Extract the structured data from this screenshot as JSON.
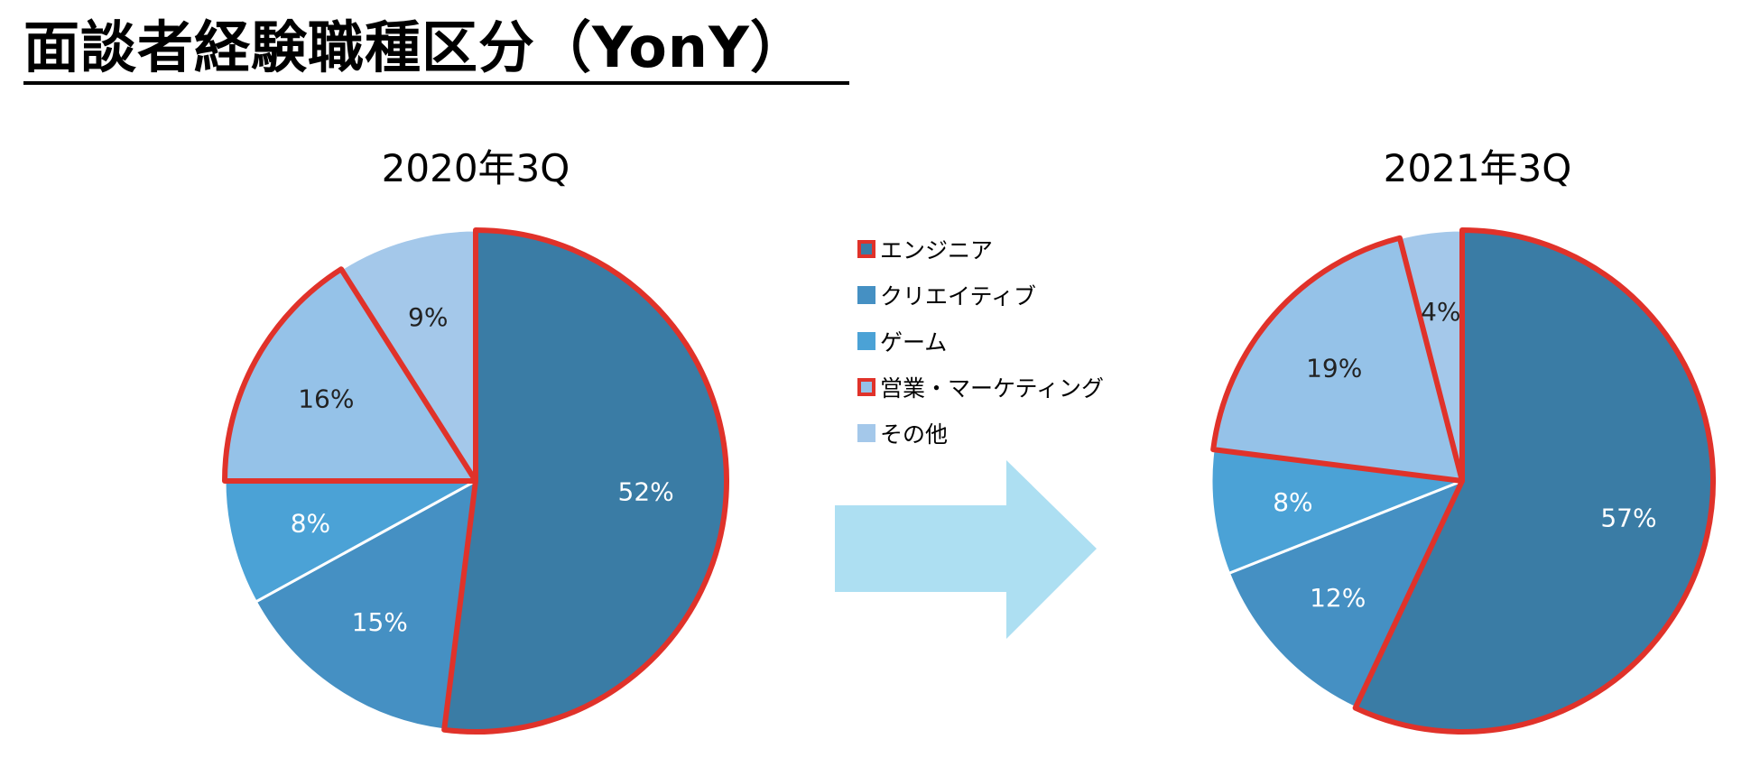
{
  "page": {
    "title": "面談者経験職種区分（YonY）"
  },
  "legend": {
    "items": [
      {
        "label": "エンジニア",
        "color": "#3a7ca5",
        "highlight": true
      },
      {
        "label": "クリエイティブ",
        "color": "#4590c3",
        "highlight": false
      },
      {
        "label": "ゲーム",
        "color": "#4ba2d6",
        "highlight": false
      },
      {
        "label": "営業・マーケティング",
        "color": "#95c2e8",
        "highlight": true
      },
      {
        "label": "その他",
        "color": "#a4c8ea",
        "highlight": false
      }
    ]
  },
  "colors": {
    "highlight_outline": "#e0322a",
    "arrow": "#addff2",
    "separator": "#ffffff"
  },
  "chart_data": [
    {
      "type": "pie",
      "title": "2020年3Q",
      "start": "12 o'clock",
      "direction": "clockwise",
      "slices": [
        {
          "category": "エンジニア",
          "value": 52,
          "label": "52%"
        },
        {
          "category": "クリエイティブ",
          "value": 15,
          "label": "15%"
        },
        {
          "category": "ゲーム",
          "value": 8,
          "label": "8%"
        },
        {
          "category": "営業・マーケティング",
          "value": 16,
          "label": "16%"
        },
        {
          "category": "その他",
          "value": 9,
          "label": "9%"
        }
      ]
    },
    {
      "type": "pie",
      "title": "2021年3Q",
      "start": "12 o'clock",
      "direction": "clockwise",
      "slices": [
        {
          "category": "エンジニア",
          "value": 57,
          "label": "57%"
        },
        {
          "category": "クリエイティブ",
          "value": 12,
          "label": "12%"
        },
        {
          "category": "ゲーム",
          "value": 8,
          "label": "8%"
        },
        {
          "category": "営業・マーケティング",
          "value": 19,
          "label": "19%"
        },
        {
          "category": "その他",
          "value": 4,
          "label": "4%"
        }
      ]
    }
  ]
}
